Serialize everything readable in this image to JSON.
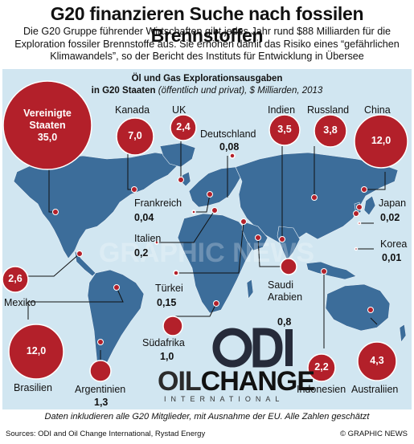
{
  "headline": "G20 finanzieren Suche nach fossilen Brennstoffen",
  "intro": "Die G20 Gruppe führender Wirtschaften gibt jedes Jahr rund $88 Milliarden für die Exploration fossiler Brennstoffe aus. Sie erhöhen damit das Risiko eines “gefährlichen Klimawandels”, so der Bericht des Instituts für Entwicklung in Übersee",
  "panel": {
    "title": "Öl und Gas Explorationsausgaben",
    "title_line2": "in G20 Staaten",
    "subtitle": "(öffentlich und privat), $ Milliarden, 2013"
  },
  "colors": {
    "bubble": "#b3202a",
    "ocean": "#d1e6f1",
    "land": "#3c6d9a"
  },
  "countries": {
    "usa": {
      "name": "Vereinigte Staaten",
      "value": "35,0"
    },
    "canada": {
      "name": "Kanada",
      "value": "7,0"
    },
    "uk": {
      "name": "UK",
      "value": "2,4"
    },
    "germany": {
      "name": "Deutschland",
      "value": "0,08"
    },
    "india": {
      "name": "Indien",
      "value": "3,5"
    },
    "russia": {
      "name": "Russland",
      "value": "3,8"
    },
    "china": {
      "name": "China",
      "value": "12,0"
    },
    "france": {
      "name": "Frankreich",
      "value": "0,04"
    },
    "italy": {
      "name": "Italien",
      "value": "0,2"
    },
    "japan": {
      "name": "Japan",
      "value": "0,02"
    },
    "korea": {
      "name": "Korea",
      "value": "0,01"
    },
    "mexico": {
      "name": "Mexiko",
      "value": "2,6"
    },
    "turkey": {
      "name": "Türkei",
      "value": "0,15"
    },
    "saudi": {
      "name": "Saudi Arabien",
      "value": "0,8"
    },
    "brazil": {
      "name": "Brasilien",
      "value": "12,0"
    },
    "southafrica": {
      "name": "Südafrika",
      "value": "1,0"
    },
    "argentina": {
      "name": "Argentinien",
      "value": "1,3"
    },
    "indonesia": {
      "name": "Indonesien",
      "value": "2,2"
    },
    "australia": {
      "name": "Australiien",
      "value": "4,3"
    }
  },
  "logos": {
    "odi": "ODI",
    "oilchange_a": "OIL",
    "oilchange_b": "CHANGE",
    "oilchange_sub": "INTERNATIONAL",
    "watermark": "GRAPHIC NEWS"
  },
  "footnote": "Daten inkludieren alle G20 Mitglieder, mit Ausnahme der EU. Alle Zahlen geschätzt",
  "sources": "Sources: ODI and Oil Change International, Rystad Energy",
  "copyright": "© GRAPHIC NEWS"
}
